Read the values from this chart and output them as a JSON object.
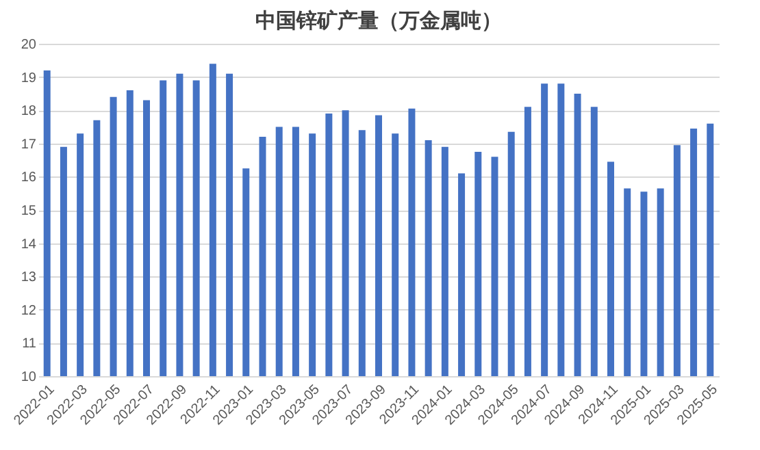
{
  "chart_data": {
    "type": "bar",
    "title": "中国锌矿产量（万金属吨）",
    "categories": [
      "2022-01",
      null,
      "2022-03",
      null,
      "2022-05",
      null,
      "2022-07",
      null,
      "2022-09",
      null,
      "2022-11",
      null,
      "2023-01",
      null,
      "2023-03",
      null,
      "2023-05",
      null,
      "2023-07",
      null,
      "2023-09",
      null,
      "2023-11",
      null,
      "2024-01",
      null,
      "2024-03",
      null,
      "2024-05",
      null,
      "2024-07",
      null,
      "2024-09",
      null,
      "2024-11",
      null,
      "2025-01",
      null,
      "2025-03",
      null,
      "2025-05"
    ],
    "values": [
      19.2,
      16.9,
      17.3,
      17.7,
      18.4,
      18.6,
      18.3,
      18.9,
      19.1,
      18.9,
      19.4,
      19.1,
      16.25,
      17.2,
      17.5,
      17.5,
      17.3,
      17.9,
      18.0,
      17.4,
      17.85,
      17.3,
      18.05,
      17.1,
      16.9,
      16.1,
      16.75,
      16.6,
      17.35,
      18.1,
      18.8,
      18.8,
      18.5,
      18.1,
      16.45,
      15.65,
      15.55,
      15.65,
      16.95,
      17.45,
      17.6
    ],
    "color": "#4472c4",
    "ylim": [
      10,
      20
    ],
    "yticks": [
      10,
      11,
      12,
      13,
      14,
      15,
      16,
      17,
      18,
      19,
      20
    ],
    "grid": "y"
  }
}
